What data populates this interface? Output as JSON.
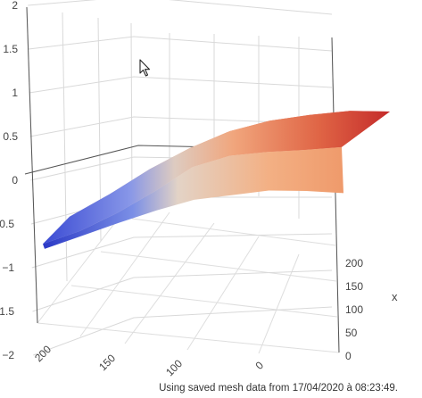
{
  "status_text": "Using saved mesh data from 17/04/2020 à 08:23:49.",
  "icons": {
    "cursor": "mouse-pointer-icon"
  },
  "colors": {
    "surface_low": "#2f3fd1",
    "surface_mid": "#dcd0c8",
    "surface_high": "#c42a2a"
  },
  "chart_data": {
    "type": "surface",
    "title": "",
    "z_axis": {
      "ticks": [
        -2,
        -1.5,
        -1,
        -0.5,
        0,
        0.5,
        1,
        1.5,
        2
      ],
      "tick_labels": [
        "−2",
        "−1.5",
        "−1",
        "−0.5",
        "0",
        "0.5",
        "1",
        "1.5",
        "2"
      ]
    },
    "x_axis": {
      "label": "x",
      "ticks": [
        0,
        50,
        100,
        150,
        200
      ],
      "tick_labels": [
        "0",
        "50",
        "100",
        "150",
        "200"
      ]
    },
    "y_axis": {
      "ticks": [
        100,
        150,
        200
      ],
      "tick_labels": [
        "100",
        "150",
        "200"
      ]
    },
    "grid": true,
    "colorscale": [
      "blue",
      "white",
      "red"
    ],
    "surface": {
      "ridge_z": [
        -0.72,
        -0.55,
        -0.32,
        -0.05,
        0.25,
        0.4,
        0.46,
        0.5,
        0.55
      ],
      "front_z": [
        -0.62,
        -0.46,
        -0.3,
        -0.15,
        -0.02,
        0.04,
        0.1,
        0.1,
        0.08
      ],
      "back_z": [
        -0.72,
        -0.45,
        -0.15,
        0.1,
        0.3,
        0.42,
        0.48,
        0.52,
        0.5
      ]
    }
  }
}
